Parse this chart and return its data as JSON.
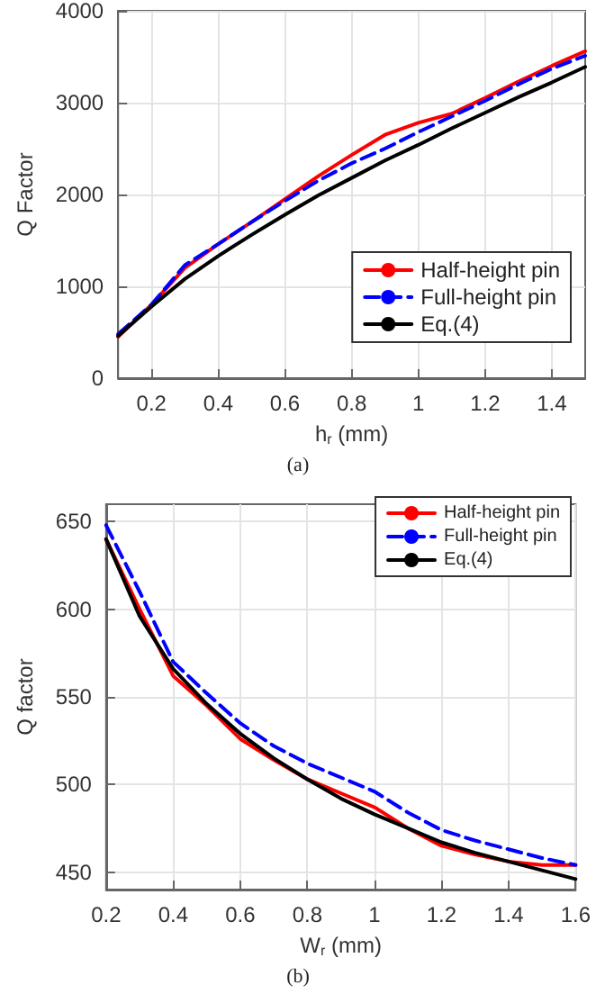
{
  "chart_data": [
    {
      "type": "line",
      "xlabel": "h$_{r}$ (mm)",
      "ylabel": "Q Factor",
      "annotations": [
        "(a)"
      ],
      "x": [
        0.1,
        0.2,
        0.3,
        0.4,
        0.5,
        0.6,
        0.7,
        0.8,
        0.9,
        1.0,
        1.1,
        1.2,
        1.3,
        1.4,
        1.5
      ],
      "series": [
        {
          "name": "Half-height pin",
          "color": "#ff0000",
          "line_style": "solid",
          "values": [
            450,
            800,
            1200,
            1460,
            1700,
            1950,
            2200,
            2430,
            2650,
            2780,
            2880,
            3050,
            3230,
            3400,
            3560
          ]
        },
        {
          "name": "Full-height pin",
          "color": "#0000ff",
          "line_style": "dashed",
          "values": [
            480,
            800,
            1230,
            1460,
            1700,
            1930,
            2150,
            2340,
            2500,
            2680,
            2850,
            3020,
            3200,
            3370,
            3510
          ]
        },
        {
          "name": "Eq.(4)",
          "color": "#000000",
          "line_style": "solid",
          "values": [
            460,
            780,
            1080,
            1330,
            1560,
            1780,
            1990,
            2180,
            2370,
            2540,
            2720,
            2890,
            3060,
            3220,
            3390
          ]
        }
      ],
      "xlim": [
        0.1,
        1.5
      ],
      "xticks": [
        0.2,
        0.4,
        0.6,
        0.8,
        1,
        1.2,
        1.4
      ],
      "ylim": [
        0,
        4000
      ],
      "yticks": [
        0,
        1000,
        2000,
        3000,
        4000
      ],
      "grid": true,
      "legend": "bottom right",
      "marker": "none"
    },
    {
      "type": "line",
      "xlabel": "W$_{r}$ (mm)",
      "ylabel": "Q factor",
      "annotations": [
        "(b)"
      ],
      "x": [
        0.2,
        0.3,
        0.4,
        0.5,
        0.6,
        0.7,
        0.8,
        0.9,
        1.0,
        1.1,
        1.2,
        1.3,
        1.4,
        1.5,
        1.6
      ],
      "series": [
        {
          "name": "Half-height pin",
          "color": "#ff0000",
          "line_style": "solid",
          "values": [
            640,
            600,
            562,
            545,
            526,
            514,
            503,
            495,
            487,
            475,
            465,
            460,
            456,
            454,
            454
          ]
        },
        {
          "name": "Full-height pin",
          "color": "#0000ff",
          "line_style": "dashed",
          "values": [
            648,
            610,
            570,
            552,
            535,
            522,
            512,
            504,
            496,
            484,
            474,
            468,
            463,
            458,
            454
          ]
        },
        {
          "name": "Eq.(4)",
          "color": "#000000",
          "line_style": "solid",
          "values": [
            640,
            596,
            566,
            546,
            529,
            515,
            503,
            492,
            483,
            475,
            467,
            461,
            456,
            451,
            446
          ]
        }
      ],
      "xlim": [
        0.2,
        1.6
      ],
      "xticks": [
        0.2,
        0.4,
        0.6,
        0.8,
        1,
        1.2,
        1.4,
        1.6
      ],
      "ylim": [
        440,
        660
      ],
      "yticks": [
        450,
        500,
        550,
        600,
        650
      ],
      "grid": true,
      "legend": "top right",
      "marker": "none"
    }
  ]
}
